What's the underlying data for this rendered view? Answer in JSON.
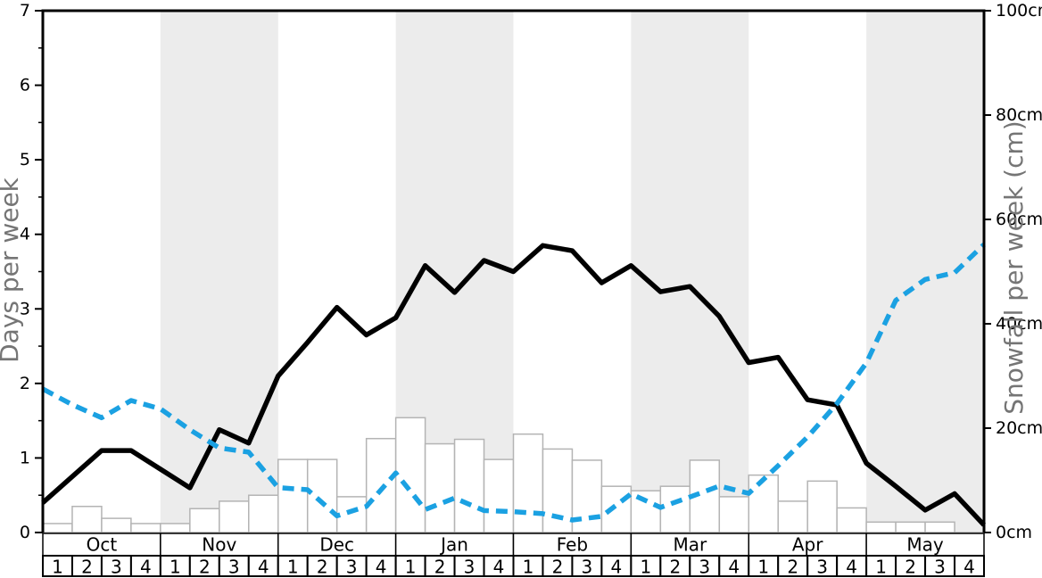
{
  "chart_data": {
    "type": "mixed-line-bar",
    "title": "",
    "left_axis": {
      "label": "Days per week",
      "min": 0,
      "max": 7,
      "tick_labels": [
        "0",
        "1",
        "2",
        "3",
        "4",
        "5",
        "6",
        "7"
      ],
      "minor_tick_step": 0.5
    },
    "right_axis": {
      "label": "Snowfall per week (cm)",
      "min": 0,
      "max": 100,
      "tick_values": [
        0,
        20,
        40,
        60,
        80,
        100
      ],
      "tick_labels": [
        "0cm",
        "20cm",
        "40cm",
        "60cm",
        "80cm",
        "100cm"
      ]
    },
    "months": [
      "Oct",
      "Nov",
      "Dec",
      "Jan",
      "Feb",
      "Mar",
      "Apr",
      "May"
    ],
    "weeks_per_month": [
      "1",
      "2",
      "3",
      "4"
    ],
    "shaded_month_indexes": [
      1,
      3,
      5,
      7
    ],
    "x_note": "line series have 33 points placed at the 32 week-start boundaries plus the right plot edge; bars are one per week (32)",
    "series": [
      {
        "name": "days-per-week-line",
        "type": "line",
        "axis": "left",
        "style": "solid",
        "color": "#000000",
        "values": [
          0.4,
          0.75,
          1.1,
          1.1,
          0.85,
          0.6,
          1.38,
          1.2,
          2.1,
          2.55,
          3.02,
          2.65,
          2.88,
          3.58,
          3.22,
          3.65,
          3.5,
          3.85,
          3.78,
          3.35,
          3.58,
          3.23,
          3.3,
          2.9,
          2.28,
          2.35,
          1.78,
          1.71,
          0.93,
          0.62,
          0.3,
          0.52,
          0.1
        ]
      },
      {
        "name": "snowfall-per-week-line",
        "type": "line",
        "axis": "right",
        "style": "dashed",
        "color": "#1BA1E2",
        "values": [
          27.5,
          24.5,
          22.0,
          25.3,
          23.7,
          19.7,
          16.2,
          15.4,
          8.6,
          8.2,
          3.2,
          5.0,
          11.4,
          4.4,
          6.6,
          4.2,
          4.0,
          3.6,
          2.4,
          3.1,
          7.4,
          4.8,
          6.8,
          8.9,
          7.5,
          12.8,
          18.3,
          24.7,
          32.5,
          44.5,
          48.5,
          49.8,
          55.2
        ]
      },
      {
        "name": "weekly-bars",
        "type": "bar",
        "axis": "left",
        "fill": "#ffffff",
        "border": "#b4b4b4",
        "values": [
          0.12,
          0.35,
          0.19,
          0.12,
          0.12,
          0.32,
          0.42,
          0.5,
          0.98,
          0.98,
          0.48,
          1.26,
          1.54,
          1.19,
          1.25,
          0.98,
          1.32,
          1.12,
          0.97,
          0.62,
          0.56,
          0.62,
          0.97,
          0.48,
          0.77,
          0.42,
          0.69,
          0.33,
          0.14,
          0.14,
          0.14,
          0
        ]
      }
    ],
    "colors": {
      "band": "#ececec",
      "axis_title": "#757575",
      "tick_label": "#000000",
      "spine": "#000000",
      "baseline": "#b4b4b4"
    },
    "legend": "none"
  }
}
